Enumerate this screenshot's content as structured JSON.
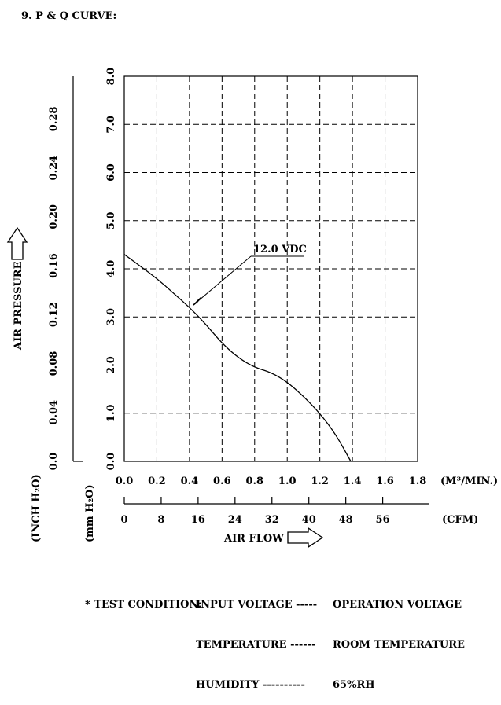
{
  "heading": "9. P & Q CURVE:",
  "chart_data": {
    "type": "line",
    "x_axis": {
      "label": "AIR FLOW",
      "primary_unit": "(M³/MIN.)",
      "primary_range": [
        0.0,
        1.8
      ],
      "primary_ticks": [
        "0.0",
        "0.2",
        "0.4",
        "0.6",
        "0.8",
        "1.0",
        "1.2",
        "1.4",
        "1.6",
        "1.8"
      ],
      "secondary_unit": "(CFM)",
      "secondary_ticks": [
        "0",
        "8",
        "16",
        "24",
        "32",
        "40",
        "48",
        "56"
      ]
    },
    "y_axis": {
      "label": "AIR PRESSURE",
      "primary_unit": "(mm H₂O)",
      "primary_range": [
        0.0,
        8.0
      ],
      "primary_ticks": [
        "0.0",
        "1.0",
        "2.0",
        "3.0",
        "4.0",
        "5.0",
        "6.0",
        "7.0",
        "8.0"
      ],
      "secondary_unit": "(INCH H₂O)",
      "secondary_ticks": [
        "0.0",
        "0.04",
        "0.08",
        "0.12",
        "0.16",
        "0.20",
        "0.24",
        "0.28"
      ]
    },
    "grid": true,
    "series": [
      {
        "name": "12.0 VDC",
        "x": [
          0.0,
          0.1,
          0.2,
          0.3,
          0.4,
          0.5,
          0.6,
          0.7,
          0.8,
          0.9,
          1.0,
          1.1,
          1.2,
          1.3,
          1.39
        ],
        "y": [
          4.3,
          4.05,
          3.8,
          3.5,
          3.2,
          2.85,
          2.45,
          2.15,
          1.95,
          1.85,
          1.65,
          1.35,
          1.0,
          0.55,
          0.0
        ]
      }
    ]
  },
  "test_condition": {
    "title": "* TEST CONDITION:",
    "rows": [
      {
        "param": "INPUT VOLTAGE",
        "dashes": "-----",
        "value": "OPERATION VOLTAGE"
      },
      {
        "param": "TEMPERATURE",
        "dashes": "------",
        "value": "ROOM TEMPERATURE"
      },
      {
        "param": "HUMIDITY",
        "dashes": "----------",
        "value": "65%RH"
      }
    ]
  }
}
